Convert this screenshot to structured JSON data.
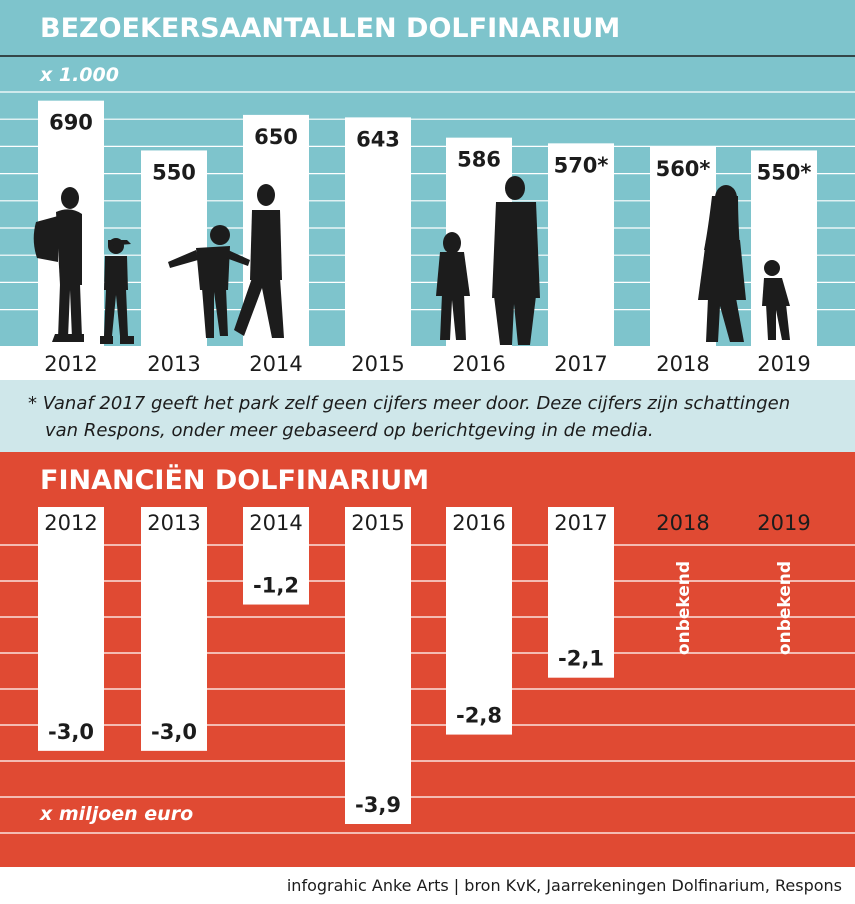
{
  "colors": {
    "teal": "#7ec4cc",
    "red": "#e04a33",
    "note_bg": "#cfe7ea",
    "bar": "#ffffff",
    "silhouette": "#1c1c1c",
    "text": "#1c1c1c"
  },
  "chart_data": [
    {
      "type": "bar",
      "title": "BEZOEKERSAANTALLEN DOLFINARIUM",
      "unit": "x 1.000",
      "categories": [
        "2012",
        "2013",
        "2014",
        "2015",
        "2016",
        "2017",
        "2018",
        "2019"
      ],
      "values": [
        690,
        550,
        650,
        643,
        586,
        570,
        560,
        550
      ],
      "labels": [
        "690",
        "550",
        "650",
        "643",
        "586",
        "570*",
        "560*",
        "550*"
      ],
      "ylim": [
        0,
        720
      ],
      "grid": true
    },
    {
      "type": "bar",
      "title": "FINANCIËN DOLFINARIUM",
      "unit": "x miljoen euro",
      "categories": [
        "2012",
        "2013",
        "2014",
        "2015",
        "2016",
        "2017",
        "2018",
        "2019"
      ],
      "values": [
        -3.0,
        -3.0,
        -1.2,
        -3.9,
        -2.8,
        -2.1,
        null,
        null
      ],
      "labels": [
        "-3,0",
        "-3,0",
        "-1,2",
        "-3,9",
        "-2,8",
        "-2,1",
        "onbekend",
        "onbekend"
      ],
      "ylim": [
        -3.9,
        0
      ],
      "grid": true
    }
  ],
  "footnote": {
    "line1": "* Vanaf 2017 geeft het park zelf geen cijfers meer door. Deze cijfers zijn schattingen",
    "line2": "van Respons, onder meer gebaseerd op berichtgeving in de media."
  },
  "credit": "infograhic Anke Arts | bron KvK, Jaarrekeningen Dolfinarium, Respons"
}
